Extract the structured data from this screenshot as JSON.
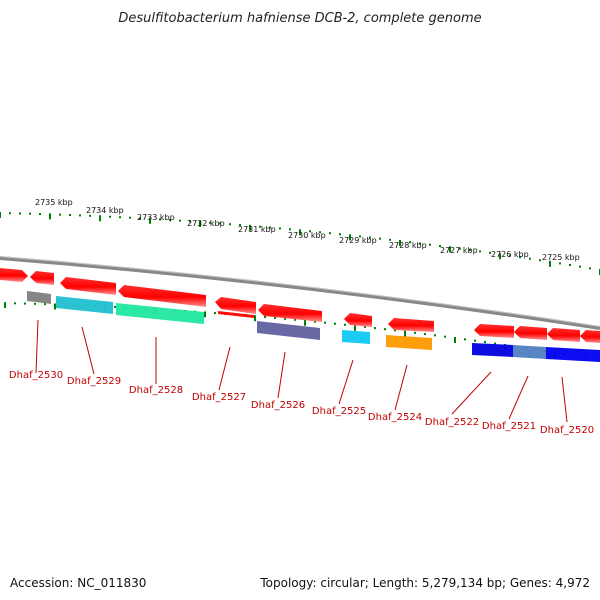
{
  "title": "Desulfitobacterium hafniense DCB-2, complete genome",
  "footer": {
    "accession": "Accession: NC_011830",
    "topology": "Topology: circular; Length: 5,279,134 bp; Genes: 4,972"
  },
  "scale_labels": [
    "2735 kbp",
    "2734 kbp",
    "2733 kbp",
    "2732 kbp",
    "2731 kbp",
    "2730 kbp",
    "2729 kbp",
    "2728 kbp",
    "2727 kbp",
    "2726 kbp",
    "2725 kbp"
  ],
  "genes": [
    {
      "id": "Dhaf_2530",
      "strand": "reverse",
      "color": "#808080"
    },
    {
      "id": "Dhaf_2529",
      "strand": "forward",
      "color": "#20c0d0"
    },
    {
      "id": "Dhaf_2528",
      "strand": "forward",
      "color": "#20e8a0"
    },
    {
      "id": "Dhaf_2527",
      "strand": "forward",
      "color": "#ff0000"
    },
    {
      "id": "Dhaf_2526",
      "strand": "forward",
      "color": "#6060a0"
    },
    {
      "id": "Dhaf_2525",
      "strand": "forward",
      "color": "#10c8f0"
    },
    {
      "id": "Dhaf_2524",
      "strand": "forward",
      "color": "#ff9900"
    },
    {
      "id": "Dhaf_2522",
      "strand": "reverse",
      "color": "#0000e0"
    },
    {
      "id": "Dhaf_2521",
      "strand": "reverse",
      "color": "#5080c0"
    },
    {
      "id": "Dhaf_2520",
      "strand": "reverse",
      "color": "#0000f0"
    }
  ],
  "colors": {
    "cds": "#ff0000",
    "backbone": "#808080",
    "scale_ticks": "#008000",
    "gene_labels": "#c00000"
  }
}
